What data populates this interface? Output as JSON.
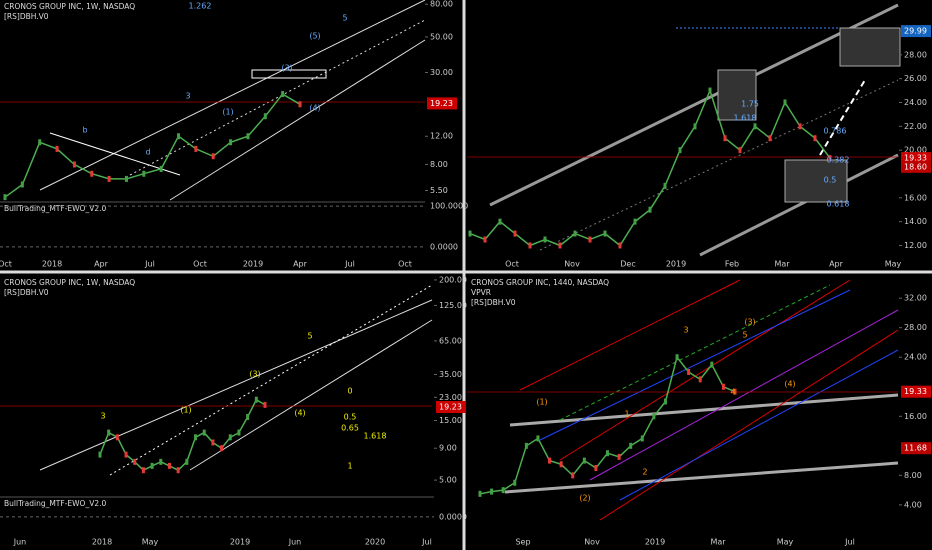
{
  "panels": [
    {
      "title": "CRONOS GROUP INC, 1W, NASDAQ",
      "subtitle": "[RS]DBH.V0",
      "log": true,
      "ylim": [
        4.8,
        85
      ],
      "yticks": [
        {
          "value": 80,
          "label": "80.00"
        },
        {
          "value": 50,
          "label": "50.00"
        },
        {
          "value": 30,
          "label": "30.00"
        },
        {
          "value": 12,
          "label": "12.00"
        },
        {
          "value": 8,
          "label": "8.00"
        },
        {
          "value": 5.5,
          "label": "5.50"
        }
      ],
      "price_label": {
        "value": 19.23,
        "label": "19.23"
      },
      "x_labels": [
        "Oct",
        "2018",
        "Apr",
        "Jul",
        "Oct",
        "2019",
        "Apr",
        "Jul",
        "Oct"
      ],
      "price": [
        5,
        6,
        11,
        10,
        8,
        7,
        6.5,
        6.5,
        7,
        7.5,
        12,
        10,
        9,
        11,
        12,
        16,
        22,
        19
      ],
      "indicator": {
        "name": "BullTrading_MTF-EWO_V2.0",
        "ylim": [
          -20,
          110
        ],
        "yticks": [
          {
            "value": 100,
            "label": "100.0000"
          },
          {
            "value": 0,
            "label": "0.0000"
          }
        ]
      },
      "annotations": [
        "b",
        "d",
        "3",
        "5",
        "(1)",
        "(3)",
        "(4)",
        "(5)",
        "1.262"
      ]
    },
    {
      "title": "",
      "subtitle": "",
      "log": false,
      "ylim": [
        11.2,
        32.6
      ],
      "yticks": [
        {
          "value": 28,
          "label": "28.00"
        },
        {
          "value": 26,
          "label": "26.00"
        },
        {
          "value": 24,
          "label": "24.00"
        },
        {
          "value": 22,
          "label": "22.00"
        },
        {
          "value": 20,
          "label": "20.00"
        },
        {
          "value": 16,
          "label": "16.00"
        },
        {
          "value": 14,
          "label": "14.00"
        },
        {
          "value": 12,
          "label": "12.00"
        }
      ],
      "price_label": {
        "value": 19.33,
        "label": "19.33"
      },
      "extra_labels": [
        {
          "value": 29.99,
          "label": "29.99"
        },
        {
          "value": 18.6,
          "label": "18.60"
        }
      ],
      "x_labels": [
        "Oct",
        "Nov",
        "Dec",
        "2019",
        "Feb",
        "Mar",
        "Apr",
        "May"
      ],
      "price": [
        13,
        12.5,
        14,
        13,
        12,
        12.5,
        12,
        13,
        12.5,
        13,
        12,
        14,
        15,
        17,
        20,
        22,
        25,
        21,
        20,
        22,
        21,
        24,
        22,
        21,
        19.33
      ],
      "annotations": [
        "1.618",
        "1.75",
        "0.382",
        "0.5",
        "0.618",
        "0.786"
      ]
    },
    {
      "title": "CRONOS GROUP INC, 1W, NASDAQ",
      "subtitle": "[RS]DBH.V0",
      "log": true,
      "ylim": [
        3.8,
        215
      ],
      "yticks": [
        {
          "value": 200,
          "label": "200.00"
        },
        {
          "value": 125,
          "label": "125.00"
        },
        {
          "value": 65,
          "label": "65.00"
        },
        {
          "value": 35,
          "label": "35.00"
        },
        {
          "value": 23,
          "label": "23.00"
        },
        {
          "value": 15,
          "label": "15.00"
        },
        {
          "value": 9,
          "label": "9.00"
        },
        {
          "value": 5,
          "label": "5.00"
        }
      ],
      "price_label": {
        "value": 19.23,
        "label": "19.23"
      },
      "x_labels": [
        "Jun",
        "2018",
        "May",
        "2019",
        "Jun",
        "2020",
        "Jul"
      ],
      "price": [
        8,
        12,
        11,
        8,
        7,
        6,
        6.5,
        7,
        6.5,
        6,
        7,
        11,
        12,
        10,
        9,
        11,
        12,
        16,
        22,
        20
      ],
      "indicator": {
        "name": "BullTrading_MTF-EWO_V2.0",
        "ylim": [
          -29,
          71
        ],
        "yticks": [
          {
            "value": 0,
            "label": "0.0000"
          }
        ]
      },
      "annotations": [
        "3",
        "5",
        "(1)",
        "(3)",
        "(4)",
        "0.5",
        "0.65",
        "1.618",
        "0",
        "1"
      ]
    },
    {
      "title": "CRONOS GROUP INC, 1440, NASDAQ",
      "subtitle": "VPVR",
      "subtitle2": "[RS]DBH.V0",
      "log": false,
      "ylim": [
        0.6,
        35
      ],
      "yticks": [
        {
          "value": 32,
          "label": "32.00"
        },
        {
          "value": 28,
          "label": "28.00"
        },
        {
          "value": 24,
          "label": "24.00"
        },
        {
          "value": 16,
          "label": "16.00"
        },
        {
          "value": 8,
          "label": "8.00"
        },
        {
          "value": 4,
          "label": "4.00"
        }
      ],
      "price_label": {
        "value": 19.33,
        "label": "19.33"
      },
      "extra_labels": [
        {
          "value": 11.68,
          "label": "11.68"
        }
      ],
      "x_labels": [
        "Sep",
        "Nov",
        "2019",
        "Mar",
        "May",
        "Jul"
      ],
      "price": [
        5.5,
        5.8,
        6,
        7,
        12,
        13,
        10,
        9.5,
        8,
        10,
        9,
        11,
        10.5,
        12,
        13,
        16,
        18,
        24,
        22,
        21,
        23,
        20,
        19.33
      ],
      "annotations": [
        "(1)",
        "3",
        "(3)",
        "5",
        "(4)",
        "1",
        "2",
        "(2)",
        "4"
      ]
    }
  ]
}
